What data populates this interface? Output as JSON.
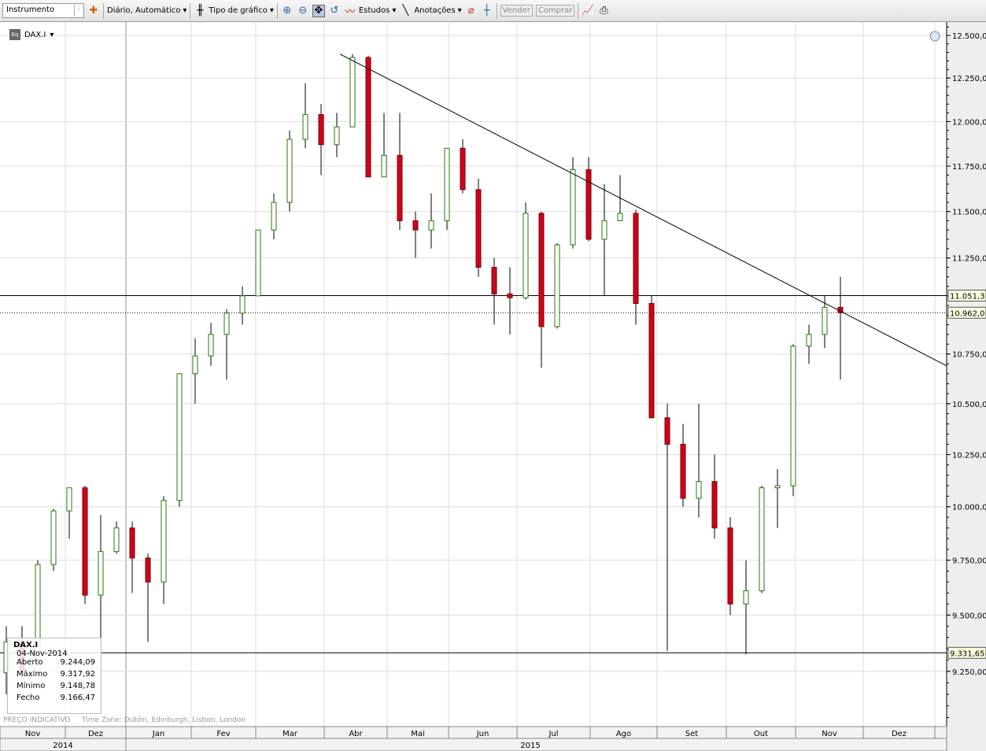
{
  "toolbar": {
    "instrument_placeholder": "Instrumento",
    "period": "Diário,  Automático",
    "chart_type": "Tipo de gráfico",
    "studies": "Estudos",
    "annotations": "Anotações",
    "sell": "Vender",
    "buy": "Comprar"
  },
  "symbol": "DAX.I",
  "tooltip": {
    "symbol": "DAX.I",
    "date": "04-Nov-2014",
    "rows": [
      {
        "label": "Aberto",
        "value": "9.244,09"
      },
      {
        "label": "Máximo",
        "value": "9.317,92"
      },
      {
        "label": "Mínimo",
        "value": "9.148,78"
      },
      {
        "label": "Fecho",
        "value": "9.166,47"
      }
    ]
  },
  "footer": {
    "note": "PREÇO INDICATIVO",
    "timezone": "Time Zone: Dublin, Edinburgh, Lisbon, London"
  },
  "colors": {
    "up": "#4caf2a",
    "down": "#d0021b",
    "grid": "#d8d8d8"
  },
  "chart_data": {
    "type": "candlestick",
    "scale": "log",
    "ylim": [
      9000,
      12600
    ],
    "grid": true,
    "yticks": [
      "12.500,00",
      "12.250,00",
      "12.000,00",
      "11.750,00",
      "11.500,00",
      "11.250,00",
      "10.750,00",
      "10.500,00",
      "10.250,00",
      "10.000,00",
      "9.750,00",
      "9.500,00",
      "9.250,00"
    ],
    "ytick_values": [
      12500,
      12250,
      12000,
      11750,
      11500,
      11250,
      10750,
      10500,
      10250,
      10000,
      9750,
      9500,
      9250
    ],
    "months": [
      "Nov",
      "Dez",
      "Jan",
      "Fev",
      "Mar",
      "Abr",
      "Mai",
      "Jun",
      "Jul",
      "Ago",
      "Set",
      "Out",
      "Nov",
      "Dez"
    ],
    "years": [
      "2014",
      "2015"
    ],
    "levels": [
      {
        "value": 11051.3,
        "label": "11.051,3",
        "style": "solid"
      },
      {
        "value": 10962.0,
        "label": "10.962,0",
        "style": "dotted"
      },
      {
        "value": 9331.65,
        "label": "9.331,65",
        "style": "solid"
      }
    ],
    "trendline": [
      {
        "date": "2015-04-10",
        "value": 12390
      },
      {
        "date": "2015-12-31",
        "value": 10690
      }
    ],
    "candle_period": "weekly approximation",
    "start_week": "2014-11-03",
    "ohlc": [
      [
        9244,
        9450,
        9150,
        9380
      ],
      [
        9380,
        9450,
        9200,
        9250
      ],
      [
        9250,
        9750,
        9250,
        9730
      ],
      [
        9730,
        9990,
        9700,
        9980
      ],
      [
        9980,
        10090,
        9850,
        10090
      ],
      [
        10090,
        10100,
        9550,
        9590
      ],
      [
        9590,
        9960,
        9400,
        9790
      ],
      [
        9790,
        9930,
        9780,
        9900
      ],
      [
        9900,
        9930,
        9600,
        9760
      ],
      [
        9760,
        9780,
        9380,
        9650
      ],
      [
        9650,
        10050,
        9550,
        10030
      ],
      [
        10030,
        10650,
        10000,
        10650
      ],
      [
        10650,
        10830,
        10500,
        10740
      ],
      [
        10740,
        10910,
        10690,
        10850
      ],
      [
        10850,
        10980,
        10620,
        10960
      ],
      [
        10960,
        11100,
        10900,
        11050
      ],
      [
        11050,
        11400,
        11050,
        11400
      ],
      [
        11400,
        11600,
        11350,
        11550
      ],
      [
        11550,
        11950,
        11500,
        11900
      ],
      [
        11900,
        12220,
        11850,
        12040
      ],
      [
        12040,
        12100,
        11700,
        11870
      ],
      [
        11870,
        12050,
        11800,
        11970
      ],
      [
        11970,
        12390,
        11970,
        12370
      ],
      [
        12370,
        12380,
        11690,
        11690
      ],
      [
        11690,
        12050,
        11690,
        11810
      ],
      [
        11810,
        12050,
        11400,
        11450
      ],
      [
        11450,
        11500,
        11250,
        11400
      ],
      [
        11400,
        11600,
        11300,
        11450
      ],
      [
        11450,
        11850,
        11400,
        11850
      ],
      [
        11850,
        11900,
        11600,
        11620
      ],
      [
        11620,
        11680,
        11150,
        11200
      ],
      [
        11200,
        11250,
        10900,
        11060
      ],
      [
        11060,
        11200,
        10850,
        11040
      ],
      [
        11040,
        11550,
        11030,
        11490
      ],
      [
        11490,
        11500,
        10680,
        10890
      ],
      [
        10890,
        11330,
        10880,
        11320
      ],
      [
        11320,
        11800,
        11300,
        11730
      ],
      [
        11730,
        11800,
        11340,
        11350
      ],
      [
        11350,
        11650,
        11050,
        11450
      ],
      [
        11450,
        11700,
        11450,
        11490
      ],
      [
        11490,
        11510,
        10900,
        11010
      ],
      [
        11010,
        11050,
        10430,
        10430
      ],
      [
        10430,
        10500,
        9340,
        10300
      ],
      [
        10300,
        10400,
        10000,
        10040
      ],
      [
        10040,
        10500,
        9950,
        10120
      ],
      [
        10120,
        10250,
        9850,
        9900
      ],
      [
        9900,
        9950,
        9500,
        9550
      ],
      [
        9550,
        9750,
        9325,
        9610
      ],
      [
        9610,
        10100,
        9600,
        10090
      ],
      [
        10090,
        10180,
        9900,
        10100
      ],
      [
        10100,
        10800,
        10050,
        10790
      ],
      [
        10790,
        10900,
        10700,
        10850
      ],
      [
        10850,
        11050,
        10780,
        10990
      ],
      [
        10990,
        11150,
        10620,
        10962
      ]
    ]
  }
}
